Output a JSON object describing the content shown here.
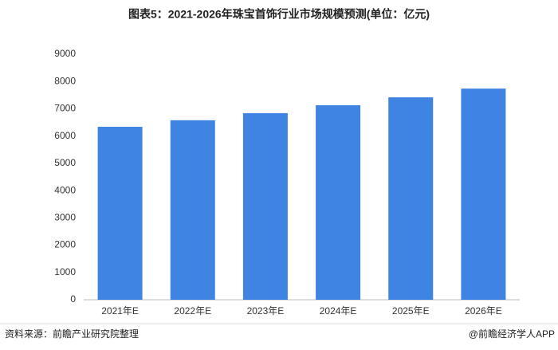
{
  "chart_data": {
    "type": "bar",
    "title": "图表5：2021-2026年珠宝首饰行业市场规模预测(单位：亿元)",
    "categories": [
      "2021年E",
      "2022年E",
      "2023年E",
      "2024年E",
      "2025年E",
      "2026年E"
    ],
    "values": [
      6340,
      6580,
      6840,
      7130,
      7420,
      7740
    ],
    "color": "#3f83e3",
    "ylim": [
      0,
      9000
    ],
    "yticks": [
      0,
      1000,
      2000,
      3000,
      4000,
      5000,
      6000,
      7000,
      8000,
      9000
    ],
    "grid": false,
    "source": "资料来源：前瞻产业研究院整理",
    "credit": "@前瞻经济学人APP"
  }
}
